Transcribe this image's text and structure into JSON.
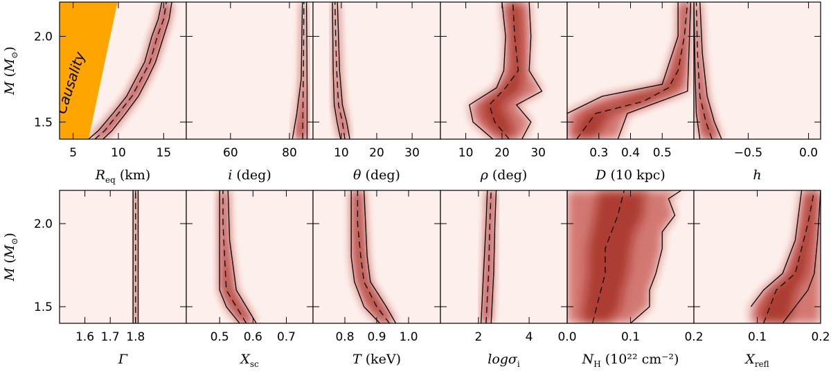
{
  "figure": {
    "y_label": "M (M⊙)",
    "y_ticks": [
      1.5,
      2.0
    ],
    "y_tick_labels": [
      "1.5",
      "2.0"
    ],
    "ylim": [
      1.4,
      2.2
    ],
    "annotation": "Causality",
    "colors": {
      "density": "#b0170f",
      "background": "#fdf0ec",
      "causality": "#ffa500",
      "line": "#000000"
    }
  },
  "chart_data": [
    {
      "type": "heatmap",
      "name": "Req",
      "xlabel": "R_eq (km)",
      "xlim": [
        3.5,
        17.5
      ],
      "xticks": [
        5,
        10,
        15
      ],
      "xtick_labels": [
        "5",
        "10",
        "15"
      ],
      "median": [
        [
          7.4,
          1.4
        ],
        [
          8.5,
          1.45
        ],
        [
          10.0,
          1.55
        ],
        [
          11.5,
          1.65
        ],
        [
          12.5,
          1.75
        ],
        [
          13.5,
          1.85
        ],
        [
          14.3,
          2.0
        ],
        [
          15.0,
          2.1
        ],
        [
          15.3,
          2.2
        ]
      ],
      "lower": [
        [
          6.7,
          1.4
        ],
        [
          7.8,
          1.45
        ],
        [
          9.4,
          1.55
        ],
        [
          10.9,
          1.65
        ],
        [
          11.9,
          1.75
        ],
        [
          12.9,
          1.85
        ],
        [
          13.7,
          2.0
        ],
        [
          14.4,
          2.1
        ],
        [
          14.8,
          2.2
        ]
      ],
      "upper": [
        [
          8.3,
          1.4
        ],
        [
          9.3,
          1.45
        ],
        [
          10.8,
          1.55
        ],
        [
          12.2,
          1.65
        ],
        [
          13.2,
          1.75
        ],
        [
          14.1,
          1.85
        ],
        [
          15.0,
          2.0
        ],
        [
          15.6,
          2.1
        ],
        [
          15.9,
          2.2
        ]
      ],
      "causality_region": true
    },
    {
      "type": "heatmap",
      "name": "i",
      "xlabel": "i (deg)",
      "xlim": [
        45,
        88
      ],
      "xticks": [
        60,
        80
      ],
      "xtick_labels": [
        "60",
        "80"
      ],
      "median": [
        [
          84.5,
          1.4
        ],
        [
          84.6,
          1.6
        ],
        [
          84.8,
          1.9
        ],
        [
          84.9,
          2.2
        ]
      ],
      "lower": [
        [
          81.0,
          1.4
        ],
        [
          82.5,
          1.55
        ],
        [
          84.0,
          1.75
        ],
        [
          84.4,
          2.2
        ]
      ],
      "upper": [
        [
          86.0,
          1.4
        ],
        [
          86.0,
          1.7
        ],
        [
          85.8,
          2.2
        ]
      ]
    },
    {
      "type": "heatmap",
      "name": "theta",
      "xlabel": "θ (deg)",
      "xlim": [
        2,
        38
      ],
      "xticks": [
        10,
        20,
        30
      ],
      "xtick_labels": [
        "10",
        "20",
        "30"
      ],
      "median": [
        [
          11.0,
          1.4
        ],
        [
          10.3,
          1.5
        ],
        [
          9.2,
          1.6
        ],
        [
          8.7,
          1.8
        ],
        [
          8.4,
          2.0
        ],
        [
          8.2,
          2.2
        ]
      ],
      "lower": [
        [
          9.8,
          1.4
        ],
        [
          8.8,
          1.5
        ],
        [
          8.0,
          1.6
        ],
        [
          7.7,
          1.8
        ],
        [
          7.6,
          2.0
        ],
        [
          7.5,
          2.2
        ]
      ],
      "upper": [
        [
          12.4,
          1.4
        ],
        [
          11.5,
          1.5
        ],
        [
          10.3,
          1.6
        ],
        [
          9.5,
          1.8
        ],
        [
          9.2,
          2.0
        ],
        [
          8.9,
          2.2
        ]
      ]
    },
    {
      "type": "heatmap",
      "name": "rho",
      "xlabel": "ρ (deg)",
      "xlim": [
        3,
        38
      ],
      "xticks": [
        10,
        20,
        30
      ],
      "xtick_labels": [
        "10",
        "20",
        "30"
      ],
      "median": [
        [
          22.0,
          1.4
        ],
        [
          18.0,
          1.5
        ],
        [
          16.5,
          1.6
        ],
        [
          21.0,
          1.7
        ],
        [
          24.5,
          1.8
        ],
        [
          23.5,
          2.0
        ],
        [
          23.0,
          2.2
        ]
      ],
      "lower": [
        [
          17.5,
          1.4
        ],
        [
          12.0,
          1.5
        ],
        [
          11.0,
          1.6
        ],
        [
          18.5,
          1.7
        ],
        [
          20.5,
          1.8
        ],
        [
          21.0,
          2.0
        ],
        [
          20.0,
          2.2
        ]
      ],
      "upper": [
        [
          25.5,
          1.4
        ],
        [
          28.0,
          1.5
        ],
        [
          24.0,
          1.6
        ],
        [
          31.0,
          1.68
        ],
        [
          27.5,
          1.8
        ],
        [
          28.0,
          2.0
        ],
        [
          27.5,
          2.2
        ]
      ]
    },
    {
      "type": "heatmap",
      "name": "D",
      "xlabel": "D (10 kpc)",
      "xlim": [
        0.2,
        0.6
      ],
      "xticks": [
        0.3,
        0.4,
        0.5
      ],
      "xtick_labels": [
        "0.3",
        "0.4",
        "0.5"
      ],
      "median": [
        [
          0.23,
          1.4
        ],
        [
          0.29,
          1.55
        ],
        [
          0.44,
          1.62
        ],
        [
          0.52,
          1.7
        ],
        [
          0.55,
          1.8
        ],
        [
          0.57,
          2.0
        ],
        [
          0.58,
          2.2
        ]
      ],
      "lower": [
        [
          0.2,
          1.4
        ],
        [
          0.2,
          1.55
        ],
        [
          0.31,
          1.65
        ],
        [
          0.5,
          1.72
        ],
        [
          0.55,
          2.0
        ],
        [
          0.55,
          2.2
        ]
      ],
      "upper": [
        [
          0.36,
          1.4
        ],
        [
          0.39,
          1.55
        ],
        [
          0.58,
          1.68
        ],
        [
          0.59,
          2.2
        ]
      ]
    },
    {
      "type": "heatmap",
      "name": "h",
      "xlabel": "h",
      "xlim": [
        -0.95,
        0.1
      ],
      "xticks": [
        -0.5,
        0.0
      ],
      "xtick_labels": [
        "−0.5",
        "0.0"
      ],
      "median": [
        [
          -0.8,
          1.4
        ],
        [
          -0.85,
          1.5
        ],
        [
          -0.9,
          1.65
        ],
        [
          -0.92,
          1.9
        ],
        [
          -0.93,
          2.2
        ]
      ],
      "lower": [
        [
          -0.9,
          1.4
        ],
        [
          -0.93,
          1.55
        ],
        [
          -0.94,
          1.8
        ],
        [
          -0.95,
          2.2
        ]
      ],
      "upper": [
        [
          -0.72,
          1.4
        ],
        [
          -0.78,
          1.5
        ],
        [
          -0.84,
          1.65
        ],
        [
          -0.88,
          1.9
        ],
        [
          -0.9,
          2.2
        ]
      ]
    },
    {
      "type": "heatmap",
      "name": "Gamma",
      "xlabel": "Γ",
      "xlim": [
        1.5,
        2.0
      ],
      "xticks": [
        1.6,
        1.7,
        1.8
      ],
      "xtick_labels": [
        "1.6",
        "1.7",
        "1.8"
      ],
      "median": [
        [
          1.8,
          1.4
        ],
        [
          1.8,
          2.2
        ]
      ],
      "lower": [
        [
          1.79,
          1.4
        ],
        [
          1.79,
          2.2
        ]
      ],
      "upper": [
        [
          1.81,
          1.4
        ],
        [
          1.81,
          2.2
        ]
      ]
    },
    {
      "type": "heatmap",
      "name": "Xsc",
      "xlabel": "X_sc",
      "xlim": [
        0.4,
        0.78
      ],
      "xticks": [
        0.5,
        0.6,
        0.7
      ],
      "xtick_labels": [
        "0.5",
        "0.6",
        "0.7"
      ],
      "median": [
        [
          0.58,
          1.4
        ],
        [
          0.55,
          1.5
        ],
        [
          0.52,
          1.6
        ],
        [
          0.515,
          1.8
        ],
        [
          0.51,
          2.0
        ],
        [
          0.51,
          2.2
        ]
      ],
      "lower": [
        [
          0.56,
          1.4
        ],
        [
          0.52,
          1.5
        ],
        [
          0.5,
          1.6
        ],
        [
          0.5,
          1.8
        ],
        [
          0.5,
          2.2
        ]
      ],
      "upper": [
        [
          0.61,
          1.4
        ],
        [
          0.58,
          1.5
        ],
        [
          0.55,
          1.6
        ],
        [
          0.53,
          1.9
        ],
        [
          0.525,
          2.2
        ]
      ]
    },
    {
      "type": "heatmap",
      "name": "T",
      "xlabel": "T (keV)",
      "xlim": [
        0.7,
        1.1
      ],
      "xticks": [
        0.8,
        0.9,
        1.0
      ],
      "xtick_labels": [
        "0.8",
        "0.9",
        "1.0"
      ],
      "median": [
        [
          0.94,
          1.4
        ],
        [
          0.9,
          1.5
        ],
        [
          0.86,
          1.65
        ],
        [
          0.85,
          1.8
        ],
        [
          0.84,
          2.0
        ],
        [
          0.84,
          2.2
        ]
      ],
      "lower": [
        [
          0.91,
          1.4
        ],
        [
          0.86,
          1.5
        ],
        [
          0.83,
          1.65
        ],
        [
          0.82,
          1.8
        ],
        [
          0.82,
          2.2
        ]
      ],
      "upper": [
        [
          0.96,
          1.4
        ],
        [
          0.93,
          1.5
        ],
        [
          0.88,
          1.65
        ],
        [
          0.87,
          1.8
        ],
        [
          0.86,
          2.2
        ]
      ]
    },
    {
      "type": "heatmap",
      "name": "logsigma",
      "xlabel": "logσ_i",
      "xlim": [
        0.5,
        5.5
      ],
      "xticks": [
        2,
        4
      ],
      "xtick_labels": [
        "2",
        "4"
      ],
      "median": [
        [
          2.3,
          1.4
        ],
        [
          2.4,
          1.7
        ],
        [
          2.45,
          2.0
        ],
        [
          2.5,
          2.2
        ]
      ],
      "lower": [
        [
          2.1,
          1.4
        ],
        [
          2.2,
          1.7
        ],
        [
          2.3,
          2.0
        ],
        [
          2.35,
          2.2
        ]
      ],
      "upper": [
        [
          2.5,
          1.4
        ],
        [
          2.6,
          1.7
        ],
        [
          2.65,
          2.0
        ],
        [
          2.7,
          2.2
        ]
      ]
    },
    {
      "type": "heatmap",
      "name": "NH",
      "xlabel": "N_H (10²² cm⁻²)",
      "xlim": [
        0.0,
        0.2
      ],
      "xticks": [
        0.0,
        0.1,
        0.2
      ],
      "xtick_labels": [
        "0.0",
        "0.1",
        "0.2"
      ],
      "median": [
        [
          0.04,
          1.4
        ],
        [
          0.05,
          1.55
        ],
        [
          0.06,
          1.7
        ],
        [
          0.06,
          1.85
        ],
        [
          0.07,
          1.95
        ],
        [
          0.08,
          2.05
        ],
        [
          0.09,
          2.2
        ]
      ],
      "lower": [
        [
          0.0,
          1.4
        ],
        [
          0.0,
          2.2
        ]
      ],
      "upper": [
        [
          0.1,
          1.4
        ],
        [
          0.13,
          1.5
        ],
        [
          0.13,
          1.6
        ],
        [
          0.14,
          1.7
        ],
        [
          0.15,
          1.85
        ],
        [
          0.15,
          1.95
        ],
        [
          0.17,
          2.05
        ],
        [
          0.16,
          2.15
        ],
        [
          0.18,
          2.2
        ]
      ]
    },
    {
      "type": "heatmap",
      "name": "Xrefl",
      "xlabel": "X_refl",
      "xlim": [
        0.0,
        0.2
      ],
      "xticks": [
        0.1,
        0.2
      ],
      "xtick_labels": [
        "0.1",
        "0.2"
      ],
      "median": [
        [
          0.11,
          1.4
        ],
        [
          0.12,
          1.5
        ],
        [
          0.13,
          1.6
        ],
        [
          0.16,
          1.7
        ],
        [
          0.17,
          1.85
        ],
        [
          0.18,
          2.0
        ],
        [
          0.19,
          2.2
        ]
      ],
      "lower": [
        [
          0.09,
          1.5
        ],
        [
          0.11,
          1.6
        ],
        [
          0.14,
          1.7
        ],
        [
          0.16,
          1.9
        ],
        [
          0.17,
          2.2
        ]
      ],
      "upper": [
        [
          0.14,
          1.4
        ],
        [
          0.16,
          1.5
        ],
        [
          0.18,
          1.6
        ],
        [
          0.19,
          1.7
        ],
        [
          0.195,
          1.9
        ],
        [
          0.2,
          2.2
        ]
      ],
      "upper_right_extends": true
    }
  ]
}
